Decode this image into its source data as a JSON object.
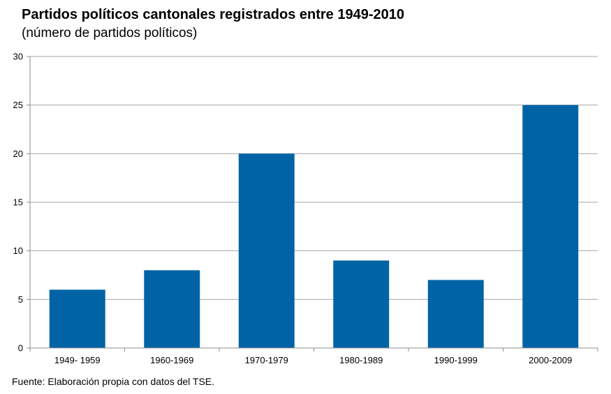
{
  "chart_data": {
    "type": "bar",
    "title": "Partidos políticos cantonales registrados entre 1949-2010",
    "subtitle": "(número de partidos políticos)",
    "categories": [
      "1949- 1959",
      "1960-1969",
      "1970-1979",
      "1980-1989",
      "1990-1999",
      "2000-2009"
    ],
    "values": [
      6,
      8,
      20,
      9,
      7,
      25
    ],
    "xlabel": "",
    "ylabel": "",
    "ylim": [
      0,
      30
    ],
    "yticks": [
      "0",
      "5",
      "10",
      "15",
      "20",
      "25",
      "30"
    ],
    "grid": true,
    "legend": "none",
    "bar_color": "#0063A6",
    "grid_color": "#A6A6A6",
    "axis_color": "#8C8C8C"
  },
  "source_note": "Fuente: Elaboración propia con datos del TSE."
}
